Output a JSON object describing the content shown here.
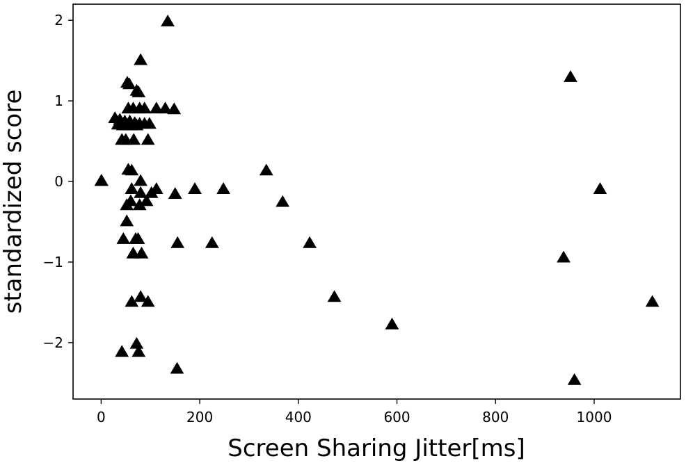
{
  "chart_data": {
    "type": "scatter",
    "title": "",
    "xlabel": "Screen Sharing Jitter[ms]",
    "ylabel": "standardized score",
    "xlim": [
      -57,
      1175
    ],
    "ylim": [
      -2.7,
      2.2
    ],
    "xticks": [
      0,
      200,
      400,
      600,
      800,
      1000
    ],
    "yticks": [
      -2,
      -1,
      0,
      1,
      2
    ],
    "grid": false,
    "legend": "none",
    "marker": "triangle-up",
    "marker_color": "#000000",
    "series": [
      {
        "points": [
          [
            135,
            1.98
          ],
          [
            80,
            1.5
          ],
          [
            952,
            1.29
          ],
          [
            53,
            1.22
          ],
          [
            57,
            1.2
          ],
          [
            72,
            1.12
          ],
          [
            76,
            1.1
          ],
          [
            55,
            0.9
          ],
          [
            65,
            0.9
          ],
          [
            78,
            0.9
          ],
          [
            88,
            0.9
          ],
          [
            112,
            0.9
          ],
          [
            130,
            0.9
          ],
          [
            148,
            0.89
          ],
          [
            28,
            0.78
          ],
          [
            38,
            0.76
          ],
          [
            48,
            0.74
          ],
          [
            58,
            0.74
          ],
          [
            68,
            0.72
          ],
          [
            78,
            0.71
          ],
          [
            88,
            0.71
          ],
          [
            98,
            0.71
          ],
          [
            34,
            0.7
          ],
          [
            44,
            0.69
          ],
          [
            52,
            0.69
          ],
          [
            62,
            0.69
          ],
          [
            72,
            0.69
          ],
          [
            42,
            0.51
          ],
          [
            50,
            0.51
          ],
          [
            66,
            0.51
          ],
          [
            95,
            0.51
          ],
          [
            55,
            0.14
          ],
          [
            62,
            0.13
          ],
          [
            335,
            0.13
          ],
          [
            0,
            0.0
          ],
          [
            1,
            0.0
          ],
          [
            80,
            0.0
          ],
          [
            62,
            -0.1
          ],
          [
            112,
            -0.1
          ],
          [
            190,
            -0.1
          ],
          [
            248,
            -0.1
          ],
          [
            1012,
            -0.1
          ],
          [
            80,
            -0.15
          ],
          [
            102,
            -0.15
          ],
          [
            150,
            -0.16
          ],
          [
            60,
            -0.25
          ],
          [
            92,
            -0.25
          ],
          [
            368,
            -0.26
          ],
          [
            52,
            -0.3
          ],
          [
            78,
            -0.3
          ],
          [
            52,
            -0.5
          ],
          [
            45,
            -0.72
          ],
          [
            70,
            -0.72
          ],
          [
            75,
            -0.72
          ],
          [
            155,
            -0.77
          ],
          [
            225,
            -0.77
          ],
          [
            423,
            -0.77
          ],
          [
            65,
            -0.9
          ],
          [
            82,
            -0.9
          ],
          [
            938,
            -0.95
          ],
          [
            80,
            -1.44
          ],
          [
            473,
            -1.44
          ],
          [
            62,
            -1.5
          ],
          [
            95,
            -1.5
          ],
          [
            1118,
            -1.5
          ],
          [
            590,
            -1.78
          ],
          [
            72,
            -2.02
          ],
          [
            42,
            -2.12
          ],
          [
            76,
            -2.12
          ],
          [
            154,
            -2.33
          ],
          [
            960,
            -2.47
          ]
        ]
      }
    ]
  }
}
